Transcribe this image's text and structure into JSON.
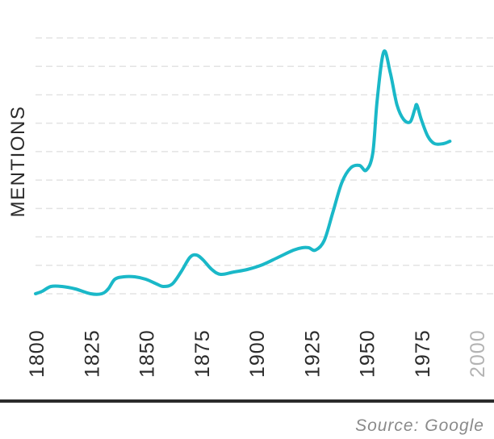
{
  "chart_data": {
    "type": "line",
    "title": "",
    "xlabel": "",
    "ylabel": "MENTIONS",
    "x_ticks": [
      "1800",
      "1825",
      "1850",
      "1875",
      "1900",
      "1925",
      "1950",
      "1975",
      "2000"
    ],
    "xlim": [
      1800,
      2008
    ],
    "ylim": [
      0,
      100
    ],
    "grid": true,
    "series": [
      {
        "name": "Mentions",
        "color": "#1ab8c8",
        "points": [
          [
            1800,
            0
          ],
          [
            1803,
            1
          ],
          [
            1807,
            3
          ],
          [
            1812,
            3
          ],
          [
            1818,
            2
          ],
          [
            1825,
            0
          ],
          [
            1830,
            0
          ],
          [
            1833,
            2
          ],
          [
            1836,
            6
          ],
          [
            1840,
            7
          ],
          [
            1845,
            7
          ],
          [
            1850,
            6
          ],
          [
            1855,
            4
          ],
          [
            1858,
            3
          ],
          [
            1862,
            4
          ],
          [
            1866,
            9
          ],
          [
            1870,
            15
          ],
          [
            1873,
            16
          ],
          [
            1876,
            14
          ],
          [
            1880,
            10
          ],
          [
            1884,
            8
          ],
          [
            1890,
            9
          ],
          [
            1896,
            10
          ],
          [
            1903,
            12
          ],
          [
            1910,
            15
          ],
          [
            1917,
            18
          ],
          [
            1921,
            19
          ],
          [
            1924,
            19
          ],
          [
            1927,
            18
          ],
          [
            1931,
            22
          ],
          [
            1935,
            34
          ],
          [
            1939,
            46
          ],
          [
            1943,
            52
          ],
          [
            1947,
            53
          ],
          [
            1950,
            51
          ],
          [
            1953,
            58
          ],
          [
            1955,
            80
          ],
          [
            1958,
            100
          ],
          [
            1961,
            91
          ],
          [
            1964,
            78
          ],
          [
            1967,
            72
          ],
          [
            1970,
            71
          ],
          [
            1972,
            76
          ],
          [
            1973,
            78
          ],
          [
            1975,
            72
          ],
          [
            1978,
            65
          ],
          [
            1981,
            62
          ],
          [
            1985,
            62
          ],
          [
            1988,
            63
          ]
        ]
      }
    ]
  },
  "source_note": "Source: Google"
}
